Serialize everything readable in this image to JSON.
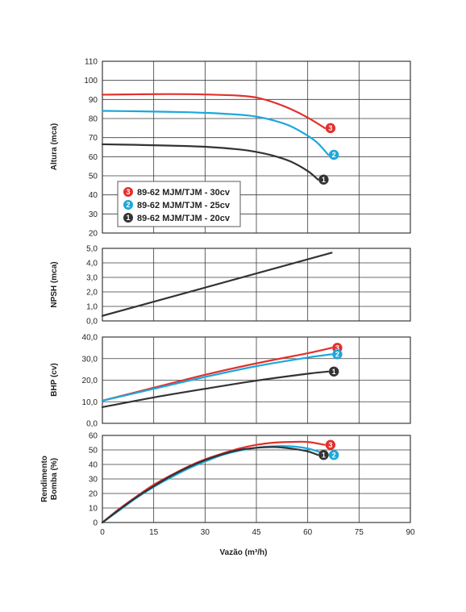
{
  "colors": {
    "series_30cv": "#e2312d",
    "series_25cv": "#1ba8dd",
    "series_20cv": "#333333",
    "grid": "#3a3a3a",
    "frame": "#3a3a3a"
  },
  "x_axis": {
    "label": "Vazão (m³/h)",
    "ticks": [
      "0",
      "15",
      "30",
      "45",
      "60",
      "75",
      "90"
    ],
    "range": [
      0,
      90
    ]
  },
  "legend": {
    "items": [
      {
        "badge": "3",
        "label": "89-62 MJM/TJM - 30cv"
      },
      {
        "badge": "2",
        "label": "89-62 MJM/TJM - 25cv"
      },
      {
        "badge": "1",
        "label": "89-62 MJM/TJM - 20cv"
      }
    ]
  },
  "chart_data": [
    {
      "type": "line",
      "panel": "altura",
      "ylabel": "Altura (mca)",
      "ylim": [
        20,
        110
      ],
      "yticks": [
        "20",
        "30",
        "40",
        "50",
        "60",
        "70",
        "80",
        "90",
        "100",
        "110"
      ],
      "xlim": [
        0,
        90
      ],
      "grid": true,
      "series": [
        {
          "name": "89-62 MJM/TJM - 30cv",
          "badge": "3",
          "x": [
            0,
            10,
            20,
            30,
            40,
            45,
            50,
            55,
            60,
            65
          ],
          "y": [
            92.5,
            92.7,
            92.8,
            92.6,
            92,
            91,
            88.5,
            85,
            80.5,
            75
          ]
        },
        {
          "name": "89-62 MJM/TJM - 25cv",
          "badge": "2",
          "x": [
            0,
            10,
            20,
            30,
            40,
            45,
            50,
            55,
            60,
            63,
            66
          ],
          "y": [
            84,
            83.8,
            83.5,
            83,
            82,
            81,
            79,
            76,
            71,
            67,
            61
          ]
        },
        {
          "name": "89-62 MJM/TJM - 20cv",
          "badge": "1",
          "x": [
            0,
            10,
            20,
            30,
            40,
            45,
            50,
            55,
            60,
            63
          ],
          "y": [
            66.5,
            66.2,
            65.8,
            65.2,
            63.8,
            62.5,
            60.5,
            57.5,
            52.5,
            48
          ]
        }
      ]
    },
    {
      "type": "line",
      "panel": "npsh",
      "ylabel": "NPSH (mca)",
      "ylim": [
        0,
        5
      ],
      "yticks": [
        "0,0",
        "1,0",
        "2,0",
        "3,0",
        "4,0",
        "5,0"
      ],
      "xlim": [
        0,
        90
      ],
      "grid": true,
      "series": [
        {
          "name": "",
          "x": [
            0,
            67
          ],
          "y": [
            0.35,
            4.7
          ]
        }
      ]
    },
    {
      "type": "line",
      "panel": "bhp",
      "ylabel": "BHP (cv)",
      "ylim": [
        0,
        40
      ],
      "yticks": [
        "0,0",
        "10,0",
        "20,0",
        "30,0",
        "40,0"
      ],
      "xlim": [
        0,
        90
      ],
      "grid": true,
      "series": [
        {
          "name": "89-62 MJM/TJM - 30cv",
          "badge": "3",
          "x": [
            0,
            15,
            30,
            45,
            60,
            67
          ],
          "y": [
            10.5,
            16.5,
            22.5,
            27.8,
            32.5,
            35
          ]
        },
        {
          "name": "89-62 MJM/TJM - 25cv",
          "badge": "2",
          "x": [
            0,
            15,
            30,
            45,
            60,
            67
          ],
          "y": [
            10.5,
            16,
            21.5,
            26.5,
            30.5,
            32
          ]
        },
        {
          "name": "89-62 MJM/TJM - 20cv",
          "badge": "1",
          "x": [
            0,
            15,
            30,
            45,
            60,
            66
          ],
          "y": [
            7.5,
            12,
            16,
            19.8,
            23,
            24
          ]
        }
      ]
    },
    {
      "type": "line",
      "panel": "rendimento",
      "ylabel": "Rendimento Bomba (%)",
      "ylabel_lines": [
        "Rendimento",
        "Bomba (%)"
      ],
      "ylim": [
        0,
        60
      ],
      "yticks": [
        "0",
        "10",
        "20",
        "30",
        "40",
        "50",
        "60"
      ],
      "xlim": [
        0,
        90
      ],
      "grid": true,
      "series": [
        {
          "name": "89-62 MJM/TJM - 30cv",
          "badge": "3",
          "x": [
            0,
            5,
            10,
            15,
            20,
            25,
            30,
            35,
            40,
            45,
            50,
            55,
            60,
            65
          ],
          "y": [
            0,
            9.5,
            18,
            26,
            32.5,
            38.5,
            43.5,
            47.5,
            51,
            53.5,
            55,
            55.5,
            55.5,
            53.5
          ]
        },
        {
          "name": "89-62 MJM/TJM - 25cv",
          "badge": "2",
          "x": [
            0,
            5,
            10,
            15,
            20,
            25,
            30,
            35,
            40,
            45,
            50,
            55,
            60,
            66
          ],
          "y": [
            0,
            8.5,
            17,
            24.5,
            31,
            37,
            42,
            46.5,
            49.5,
            51.5,
            52.5,
            52.5,
            51,
            46.5
          ]
        },
        {
          "name": "89-62 MJM/TJM - 20cv",
          "badge": "1",
          "x": [
            0,
            5,
            10,
            15,
            20,
            25,
            30,
            35,
            40,
            45,
            50,
            55,
            60,
            63
          ],
          "y": [
            0,
            9,
            17.5,
            25,
            32,
            38,
            43,
            47,
            50,
            51.5,
            52,
            51,
            49,
            46.5
          ]
        }
      ]
    }
  ]
}
